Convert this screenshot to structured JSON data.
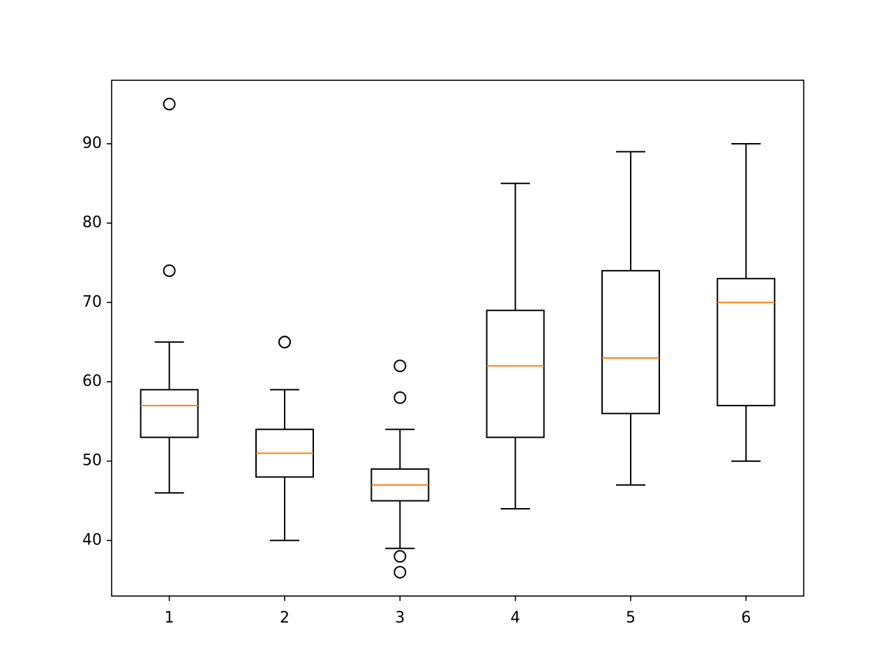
{
  "colors": {
    "box_stroke": "#000000",
    "median": "#ff7f0e",
    "background": "#ffffff",
    "flier_stroke": "#000000"
  },
  "chart_data": {
    "type": "boxplot",
    "title": "",
    "xlabel": "",
    "ylabel": "",
    "xlim": [
      0.5,
      6.5
    ],
    "ylim": [
      33,
      98
    ],
    "grid": false,
    "yticks": [
      40,
      50,
      60,
      70,
      80,
      90
    ],
    "categories": [
      "1",
      "2",
      "3",
      "4",
      "5",
      "6"
    ],
    "series": [
      {
        "name": "1",
        "whisker_low": 46,
        "q1": 53,
        "median": 57,
        "q3": 59,
        "whisker_high": 65,
        "outliers": [
          74,
          95
        ]
      },
      {
        "name": "2",
        "whisker_low": 40,
        "q1": 48,
        "median": 51,
        "q3": 54,
        "whisker_high": 59,
        "outliers": [
          65,
          65
        ]
      },
      {
        "name": "3",
        "whisker_low": 39,
        "q1": 45,
        "median": 47,
        "q3": 49,
        "whisker_high": 54,
        "outliers": [
          58,
          62,
          38,
          36
        ]
      },
      {
        "name": "4",
        "whisker_low": 44,
        "q1": 53,
        "median": 62,
        "q3": 69,
        "whisker_high": 85,
        "outliers": []
      },
      {
        "name": "5",
        "whisker_low": 47,
        "q1": 56,
        "median": 63,
        "q3": 74,
        "whisker_high": 89,
        "outliers": []
      },
      {
        "name": "6",
        "whisker_low": 50,
        "q1": 57,
        "median": 70,
        "q3": 73,
        "whisker_high": 90,
        "outliers": []
      }
    ]
  }
}
